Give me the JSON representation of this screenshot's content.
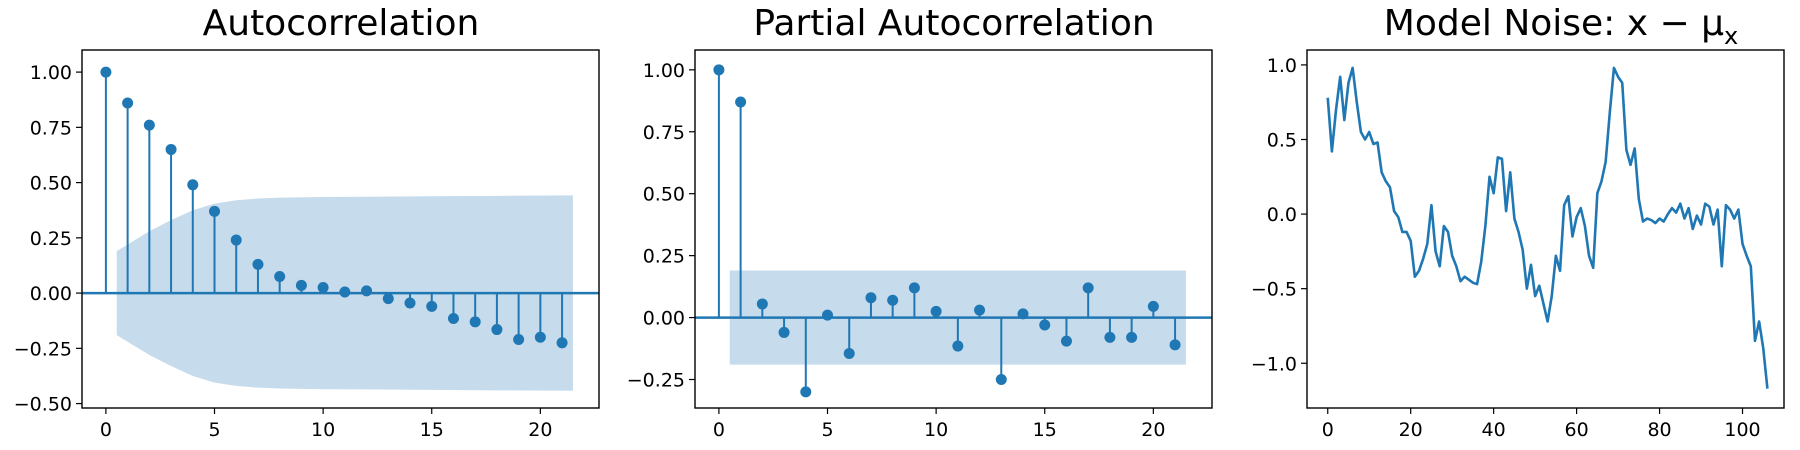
{
  "colors": {
    "series": "#1f77b4",
    "band": "#c6dbec"
  },
  "chart_data": [
    {
      "type": "stem",
      "title": "Autocorrelation",
      "xlabel": "",
      "ylabel": "",
      "xlim": [
        -1.1,
        22.7
      ],
      "ylim": [
        -0.52,
        1.1
      ],
      "xticks": [
        0,
        5,
        10,
        15,
        20
      ],
      "xtick_labels": [
        "0",
        "5",
        "10",
        "15",
        "20"
      ],
      "yticks": [
        -0.5,
        -0.25,
        0,
        0.25,
        0.5,
        0.75,
        1.0
      ],
      "ytick_labels": [
        "−0.50",
        "−0.25",
        "0.00",
        "0.25",
        "0.50",
        "0.75",
        "1.00"
      ],
      "x": [
        0,
        1,
        2,
        3,
        4,
        5,
        6,
        7,
        8,
        9,
        10,
        11,
        12,
        13,
        14,
        15,
        16,
        17,
        18,
        19,
        20,
        21
      ],
      "values": [
        1.0,
        0.86,
        0.76,
        0.65,
        0.49,
        0.37,
        0.24,
        0.13,
        0.075,
        0.035,
        0.025,
        0.005,
        0.01,
        -0.025,
        -0.045,
        -0.06,
        -0.115,
        -0.13,
        -0.165,
        -0.21,
        -0.2,
        -0.225
      ],
      "confidence_band": {
        "x": [
          0.5,
          1,
          2,
          3,
          4,
          5,
          6,
          7,
          8,
          10,
          12,
          15,
          18,
          21.5
        ],
        "upper": [
          0.19,
          0.22,
          0.28,
          0.33,
          0.375,
          0.405,
          0.42,
          0.428,
          0.432,
          0.435,
          0.436,
          0.438,
          0.44,
          0.442
        ],
        "lower": [
          -0.19,
          -0.22,
          -0.28,
          -0.33,
          -0.375,
          -0.405,
          -0.42,
          -0.428,
          -0.432,
          -0.435,
          -0.436,
          -0.438,
          -0.44,
          -0.442
        ]
      }
    },
    {
      "type": "stem",
      "title": "Partial Autocorrelation",
      "xlabel": "",
      "ylabel": "",
      "xlim": [
        -1.1,
        22.7
      ],
      "ylim": [
        -0.365,
        1.08
      ],
      "xticks": [
        0,
        5,
        10,
        15,
        20
      ],
      "xtick_labels": [
        "0",
        "5",
        "10",
        "15",
        "20"
      ],
      "yticks": [
        -0.25,
        0,
        0.25,
        0.5,
        0.75,
        1.0
      ],
      "ytick_labels": [
        "−0.25",
        "0.00",
        "0.25",
        "0.50",
        "0.75",
        "1.00"
      ],
      "x": [
        0,
        1,
        2,
        3,
        4,
        5,
        6,
        7,
        8,
        9,
        10,
        11,
        12,
        13,
        14,
        15,
        16,
        17,
        18,
        19,
        20,
        21
      ],
      "values": [
        1.0,
        0.87,
        0.055,
        -0.06,
        -0.3,
        0.01,
        -0.145,
        0.08,
        0.07,
        0.12,
        0.025,
        -0.115,
        0.03,
        -0.25,
        0.015,
        -0.03,
        -0.095,
        0.12,
        -0.08,
        -0.08,
        0.045,
        -0.11
      ],
      "confidence_band": {
        "x": [
          0.5,
          21.5
        ],
        "upper": [
          0.19,
          0.19
        ],
        "lower": [
          -0.19,
          -0.19
        ]
      }
    },
    {
      "type": "line",
      "title": "Model Noise: x − μ",
      "title_subscript": "x",
      "xlabel": "",
      "ylabel": "",
      "xlim": [
        -5,
        110
      ],
      "ylim": [
        -1.3,
        1.1
      ],
      "xticks": [
        0,
        20,
        40,
        60,
        80,
        100
      ],
      "xtick_labels": [
        "0",
        "20",
        "40",
        "60",
        "80",
        "100"
      ],
      "yticks": [
        -1.0,
        -0.5,
        0,
        0.5,
        1.0
      ],
      "ytick_labels": [
        "−1.0",
        "−0.5",
        "0.0",
        "0.5",
        "1.0"
      ],
      "series": [
        {
          "x": [
            0,
            1,
            2,
            3,
            4,
            5,
            6,
            7,
            8,
            9,
            10,
            11,
            12,
            13,
            14,
            15,
            16,
            17,
            18,
            19,
            20,
            21,
            22,
            23,
            24,
            25,
            26,
            27,
            28,
            29,
            30,
            31,
            32,
            33,
            34,
            35,
            36,
            37,
            38,
            39,
            40,
            41,
            42,
            43,
            44,
            45,
            46,
            47,
            48,
            49,
            50,
            51,
            52,
            53,
            54,
            55,
            56,
            57,
            58,
            59,
            60,
            61,
            62,
            63,
            64,
            65,
            66,
            67,
            68,
            69,
            70,
            71,
            72,
            73,
            74,
            75,
            76,
            77,
            78,
            79,
            80,
            81,
            82,
            83,
            84,
            85,
            86,
            87,
            88,
            89,
            90,
            91,
            92,
            93,
            94,
            95,
            96,
            97,
            98,
            99,
            100,
            101,
            102,
            103,
            104,
            105,
            106
          ],
          "values": [
            0.78,
            0.42,
            0.7,
            0.92,
            0.63,
            0.88,
            0.98,
            0.75,
            0.55,
            0.5,
            0.55,
            0.47,
            0.48,
            0.28,
            0.22,
            0.18,
            0.02,
            -0.02,
            -0.12,
            -0.12,
            -0.18,
            -0.42,
            -0.38,
            -0.3,
            -0.2,
            0.06,
            -0.25,
            -0.35,
            -0.08,
            -0.12,
            -0.28,
            -0.35,
            -0.45,
            -0.42,
            -0.44,
            -0.46,
            -0.47,
            -0.32,
            -0.08,
            0.25,
            0.14,
            0.38,
            0.37,
            0.02,
            0.28,
            -0.03,
            -0.12,
            -0.24,
            -0.5,
            -0.34,
            -0.55,
            -0.48,
            -0.6,
            -0.72,
            -0.55,
            -0.28,
            -0.38,
            0.06,
            0.12,
            -0.15,
            -0.02,
            0.04,
            -0.08,
            -0.28,
            -0.36,
            0.14,
            0.22,
            0.35,
            0.68,
            0.98,
            0.92,
            0.88,
            0.43,
            0.33,
            0.44,
            0.1,
            -0.05,
            -0.03,
            -0.04,
            -0.06,
            -0.03,
            -0.05,
            0.0,
            0.04,
            0.01,
            0.07,
            -0.03,
            0.04,
            -0.1,
            -0.01,
            -0.07,
            0.07,
            0.05,
            -0.07,
            0.03,
            -0.35,
            0.06,
            0.03,
            -0.03,
            0.03,
            -0.2,
            -0.28,
            -0.35,
            -0.85,
            -0.72,
            -0.9,
            -1.17
          ]
        }
      ]
    }
  ]
}
